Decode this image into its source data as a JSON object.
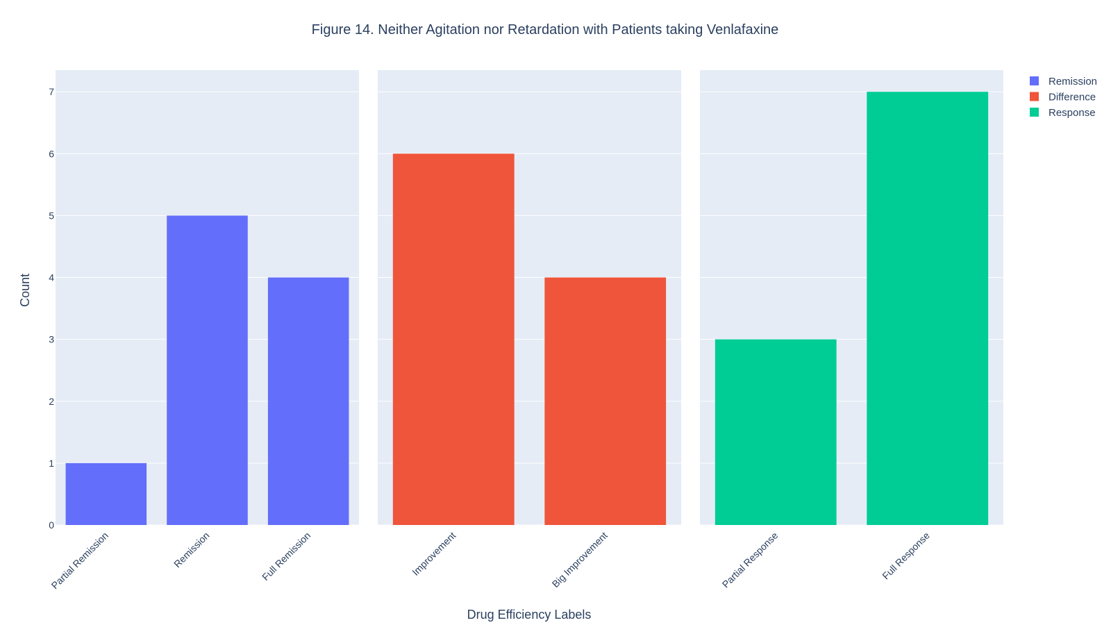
{
  "chart_data": {
    "type": "bar",
    "title": "Figure 14. Neither Agitation nor Retardation with Patients taking Venlafaxine",
    "xlabel": "Drug Efficiency Labels",
    "ylabel": "Count",
    "ylim": [
      0,
      7.35
    ],
    "yticks": [
      0,
      1,
      2,
      3,
      4,
      5,
      6,
      7
    ],
    "grid": true,
    "legend_position": "top-right",
    "panels": [
      {
        "series": "Remission",
        "color": "#636efa",
        "categories": [
          "Partial Remission",
          "Remission",
          "Full Remission"
        ],
        "values": [
          1,
          5,
          4
        ]
      },
      {
        "series": "Difference",
        "color": "#ef553b",
        "categories": [
          "Improvement",
          "Big Improvement"
        ],
        "values": [
          6,
          4
        ]
      },
      {
        "series": "Response",
        "color": "#00cc96",
        "categories": [
          "Partial Response",
          "Full Response"
        ],
        "values": [
          3,
          7
        ]
      }
    ],
    "legend": [
      {
        "name": "Remission",
        "color": "#636efa"
      },
      {
        "name": "Difference",
        "color": "#ef553b"
      },
      {
        "name": "Response",
        "color": "#00cc96"
      }
    ],
    "plot_background": "#e5ecf6",
    "grid_color": "#ffffff"
  }
}
